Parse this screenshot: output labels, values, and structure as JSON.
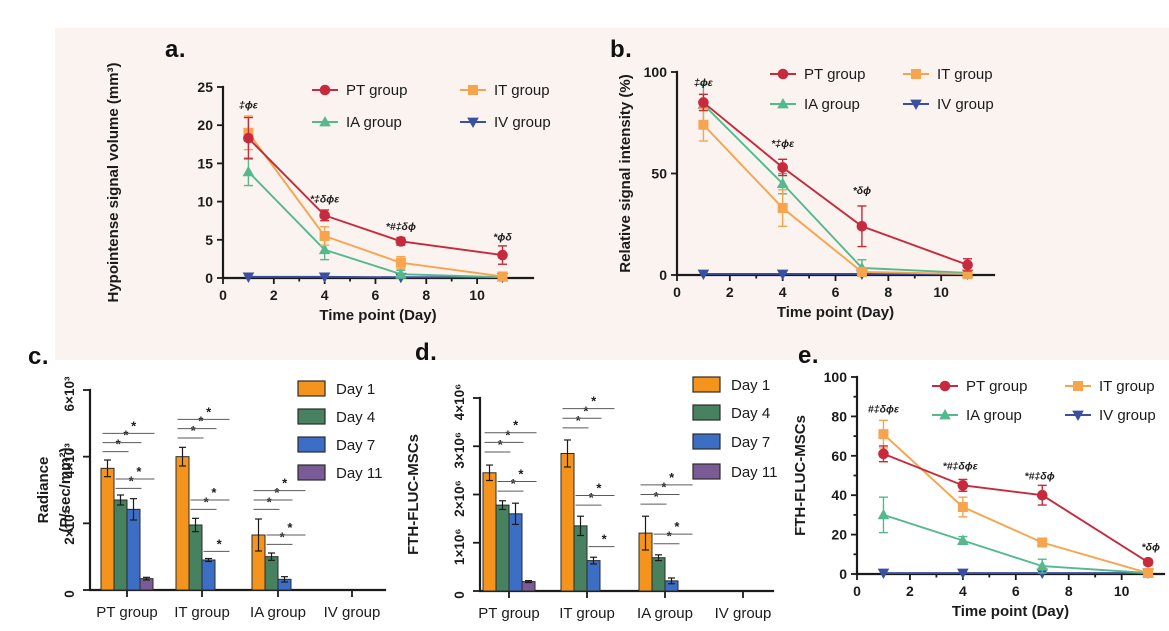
{
  "figure": {
    "background": "#ffffff",
    "band_color": "#fbf3ef",
    "axis_color": "#1b1b1b",
    "bracket_color": "#5a5a5a"
  },
  "chart_data": [
    {
      "id": "a",
      "label": "a.",
      "type": "line",
      "xlabel": "Time point (Day)",
      "ylabel": "Hypointense signal volume (mm³)",
      "xlim": [
        0,
        12.2
      ],
      "xticks": [
        0,
        2,
        4,
        6,
        8,
        10
      ],
      "x_minor_step": 1,
      "ylim": [
        0,
        25
      ],
      "yticks": [
        0,
        5,
        10,
        15,
        20,
        25
      ],
      "x": [
        1,
        4,
        7,
        11
      ],
      "series": [
        {
          "name": "PT group",
          "color": "#c62a3c",
          "marker": "circle",
          "values": [
            18.3,
            8.2,
            4.8,
            3.0
          ],
          "errors": [
            2.7,
            0.7,
            0.5,
            1.2
          ]
        },
        {
          "name": "IT group",
          "color": "#f7a44e",
          "marker": "square",
          "values": [
            19.0,
            5.5,
            2.0,
            0.2
          ],
          "errors": [
            2.2,
            1.2,
            0.8,
            0.15
          ]
        },
        {
          "name": "IA group",
          "color": "#56b98d",
          "marker": "triangle-up",
          "values": [
            13.9,
            3.7,
            0.5,
            0.1
          ],
          "errors": [
            1.8,
            1.3,
            0.5,
            0.1
          ]
        },
        {
          "name": "IV group",
          "color": "#3a4fa0",
          "marker": "triangle-down",
          "values": [
            0.15,
            0.15,
            0.1,
            0.1
          ],
          "errors": [
            0,
            0,
            0,
            0
          ]
        }
      ],
      "annotations": [
        {
          "x": 1,
          "y": 22.2,
          "text": "‡ϕε"
        },
        {
          "x": 4,
          "y": 9.9,
          "text": "*‡δϕε"
        },
        {
          "x": 7,
          "y": 6.3,
          "text": "*#‡δϕ"
        },
        {
          "x": 11,
          "y": 4.9,
          "text": "*ϕδ"
        }
      ]
    },
    {
      "id": "b",
      "label": "b.",
      "type": "line",
      "xlabel": "Time point (Day)",
      "ylabel": "Relative signal intensity (%)",
      "xlim": [
        0,
        12.0
      ],
      "xticks": [
        0,
        2,
        4,
        6,
        8,
        10
      ],
      "x_minor_step": 1,
      "ylim": [
        0,
        100
      ],
      "yticks": [
        0,
        50,
        100
      ],
      "x": [
        1,
        4,
        7,
        11
      ],
      "series": [
        {
          "name": "PT group",
          "color": "#c62a3c",
          "marker": "circle",
          "values": [
            85,
            53,
            24,
            5
          ],
          "errors": [
            4,
            4,
            10,
            3
          ]
        },
        {
          "name": "IT group",
          "color": "#f7a44e",
          "marker": "square",
          "values": [
            74,
            33,
            1.5,
            0.5
          ],
          "errors": [
            8,
            9,
            1.2,
            0.4
          ]
        },
        {
          "name": "IA group",
          "color": "#56b98d",
          "marker": "triangle-up",
          "values": [
            84,
            45,
            3.5,
            1
          ],
          "errors": [
            10,
            5,
            4,
            0.6
          ]
        },
        {
          "name": "IV group",
          "color": "#3a4fa0",
          "marker": "triangle-down",
          "values": [
            0.5,
            0.5,
            0.5,
            0.5
          ],
          "errors": [
            0,
            0,
            0,
            0
          ]
        }
      ],
      "annotations": [
        {
          "x": 1,
          "y": 93,
          "text": "‡ϕε"
        },
        {
          "x": 4,
          "y": 63,
          "text": "*‡ϕε"
        },
        {
          "x": 7,
          "y": 40,
          "text": "*δϕ"
        }
      ]
    },
    {
      "id": "c",
      "label": "c.",
      "type": "bar",
      "ylabel_lines": [
        "Radiance",
        "(P/sec/mm²)"
      ],
      "categories": [
        "PT group",
        "IT group",
        "IA group",
        "IV group"
      ],
      "ylim": [
        0,
        6000
      ],
      "yticks": [
        {
          "v": 0,
          "label": "0"
        },
        {
          "v": 2000,
          "label": "2×10³"
        },
        {
          "v": 4000,
          "label": "4×10³"
        },
        {
          "v": 6000,
          "label": "6×10³"
        }
      ],
      "series": [
        {
          "name": "Day 1",
          "color": "#f5941d",
          "values": [
            3650,
            4000,
            1650,
            0
          ],
          "errors": [
            250,
            280,
            480,
            0
          ]
        },
        {
          "name": "Day 4",
          "color": "#47815f",
          "values": [
            2700,
            1950,
            1000,
            0
          ],
          "errors": [
            150,
            200,
            110,
            0
          ]
        },
        {
          "name": "Day 7",
          "color": "#3c6ec6",
          "values": [
            2420,
            900,
            320,
            0
          ],
          "errors": [
            320,
            45,
            80,
            0
          ]
        },
        {
          "name": "Day 11",
          "color": "#7b5b95",
          "values": [
            340,
            0,
            0,
            0
          ],
          "errors": [
            40,
            0,
            0,
            0
          ]
        }
      ],
      "sig_brackets": [
        [
          0,
          0,
          1,
          4150
        ],
        [
          0,
          0,
          2,
          4420
        ],
        [
          0,
          0,
          3,
          4700
        ],
        [
          0,
          1,
          2,
          3050
        ],
        [
          0,
          1,
          3,
          3330
        ],
        [
          1,
          0,
          1,
          4560
        ],
        [
          1,
          0,
          2,
          4840
        ],
        [
          1,
          0,
          3,
          5120
        ],
        [
          1,
          1,
          2,
          2420
        ],
        [
          1,
          1,
          3,
          2700
        ],
        [
          1,
          2,
          3,
          1160
        ],
        [
          2,
          0,
          1,
          2420
        ],
        [
          2,
          0,
          2,
          2700
        ],
        [
          2,
          0,
          3,
          2980
        ],
        [
          2,
          1,
          2,
          1370
        ],
        [
          2,
          1,
          3,
          1650
        ]
      ]
    },
    {
      "id": "d",
      "label": "d.",
      "type": "bar",
      "ylabel_lines": [
        "FTH-FLUC-MSCs"
      ],
      "categories": [
        "PT group",
        "IT group",
        "IA group",
        "IV group"
      ],
      "ylim": [
        0,
        4000000
      ],
      "yticks": [
        {
          "v": 0,
          "label": "0"
        },
        {
          "v": 1000000,
          "label": "1×10⁶"
        },
        {
          "v": 2000000,
          "label": "2×10⁶"
        },
        {
          "v": 3000000,
          "label": "3×10⁶"
        },
        {
          "v": 4000000,
          "label": "4×10⁶"
        }
      ],
      "series": [
        {
          "name": "Day 1",
          "color": "#f5941d",
          "values": [
            2450000,
            2850000,
            1200000,
            0
          ],
          "errors": [
            160000,
            280000,
            350000,
            0
          ]
        },
        {
          "name": "Day 4",
          "color": "#47815f",
          "values": [
            1780000,
            1350000,
            690000,
            0
          ],
          "errors": [
            90000,
            200000,
            60000,
            0
          ]
        },
        {
          "name": "Day 7",
          "color": "#3c6ec6",
          "values": [
            1600000,
            630000,
            210000,
            0
          ],
          "errors": [
            220000,
            70000,
            60000,
            0
          ]
        },
        {
          "name": "Day 11",
          "color": "#7b5b95",
          "values": [
            195000,
            0,
            0,
            0
          ],
          "errors": [
            20000,
            0,
            0,
            0
          ]
        }
      ],
      "sig_brackets": [
        [
          0,
          0,
          1,
          2880000
        ],
        [
          0,
          0,
          2,
          3080000
        ],
        [
          0,
          0,
          3,
          3280000
        ],
        [
          0,
          1,
          2,
          2070000
        ],
        [
          0,
          1,
          3,
          2270000
        ],
        [
          1,
          0,
          1,
          3380000
        ],
        [
          1,
          0,
          2,
          3580000
        ],
        [
          1,
          0,
          3,
          3780000
        ],
        [
          1,
          1,
          2,
          1780000
        ],
        [
          1,
          1,
          3,
          1980000
        ],
        [
          1,
          2,
          3,
          920000
        ],
        [
          2,
          0,
          1,
          1800000
        ],
        [
          2,
          0,
          2,
          2000000
        ],
        [
          2,
          0,
          3,
          2200000
        ],
        [
          2,
          1,
          2,
          980000
        ],
        [
          2,
          1,
          3,
          1180000
        ]
      ]
    },
    {
      "id": "e",
      "label": "e.",
      "type": "line",
      "xlabel": "Time point (Day)",
      "ylabel": "FTH-FLUC-MSCs",
      "xlim": [
        0,
        11.6
      ],
      "xticks": [
        0,
        2,
        4,
        6,
        8,
        10
      ],
      "x_minor_step": 1,
      "ylim": [
        0,
        100
      ],
      "yticks": [
        0,
        20,
        40,
        60,
        80,
        100
      ],
      "y_minor_step": 10,
      "x": [
        1,
        4,
        7,
        11
      ],
      "series": [
        {
          "name": "PT group",
          "color": "#c62a3c",
          "marker": "circle",
          "values": [
            61,
            45,
            40,
            6
          ],
          "errors": [
            4,
            3,
            5,
            1.5
          ]
        },
        {
          "name": "IT group",
          "color": "#f7a44e",
          "marker": "square",
          "values": [
            71,
            34,
            16,
            0.5
          ],
          "errors": [
            7,
            5,
            2,
            0.3
          ]
        },
        {
          "name": "IA group",
          "color": "#56b98d",
          "marker": "triangle-up",
          "values": [
            30,
            17,
            4,
            0.5
          ],
          "errors": [
            9,
            2,
            3.5,
            0.3
          ]
        },
        {
          "name": "IV group",
          "color": "#3a4fa0",
          "marker": "triangle-down",
          "values": [
            0.5,
            0.5,
            0.5,
            0.5
          ],
          "errors": [
            0,
            0,
            0,
            0
          ]
        }
      ],
      "annotations": [
        {
          "x": 1,
          "y": 82,
          "text": "#‡δϕε"
        },
        {
          "x": 3.9,
          "y": 53,
          "text": "*#‡δϕε"
        },
        {
          "x": 6.9,
          "y": 48,
          "text": "*#‡δϕ"
        },
        {
          "x": 11.1,
          "y": 12,
          "text": "*δϕ"
        }
      ]
    }
  ]
}
